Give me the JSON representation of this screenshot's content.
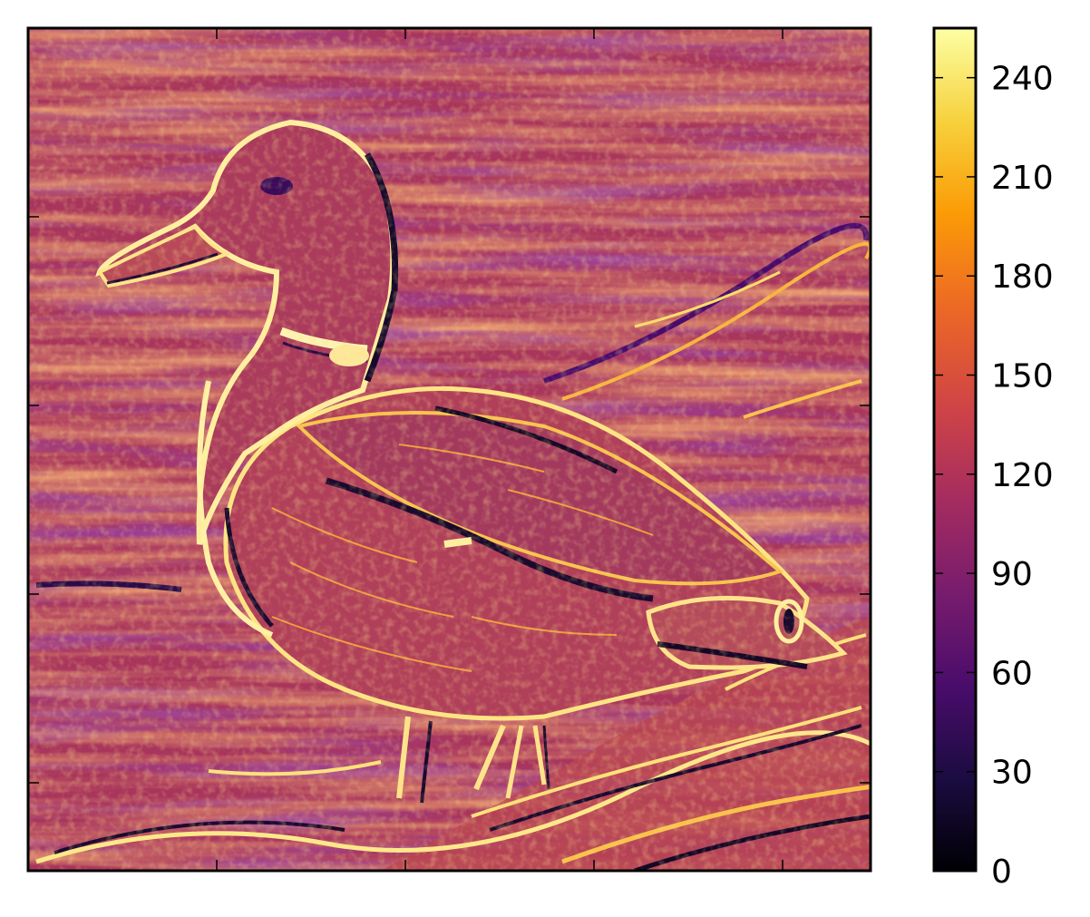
{
  "chart_data": {
    "type": "heatmap",
    "title": "",
    "xlabel": "",
    "ylabel": "",
    "image": "embossed relief rendering of a mallard duck, inferno colormap",
    "xticks_labels": false,
    "yticks_labels": false,
    "colorbar": {
      "colormap": "inferno",
      "range": [
        0,
        255
      ],
      "ticks": [
        0,
        30,
        60,
        90,
        120,
        150,
        180,
        210,
        240
      ],
      "tick_labels": [
        "0",
        "30",
        "60",
        "90",
        "120",
        "150",
        "180",
        "210",
        "240"
      ]
    },
    "colormap_stops": [
      "#000004",
      "#1b0c41",
      "#4a0c6b",
      "#781c6d",
      "#a52c60",
      "#cf4446",
      "#ed6925",
      "#fb9b06",
      "#f7d13d",
      "#fcffa4"
    ]
  }
}
